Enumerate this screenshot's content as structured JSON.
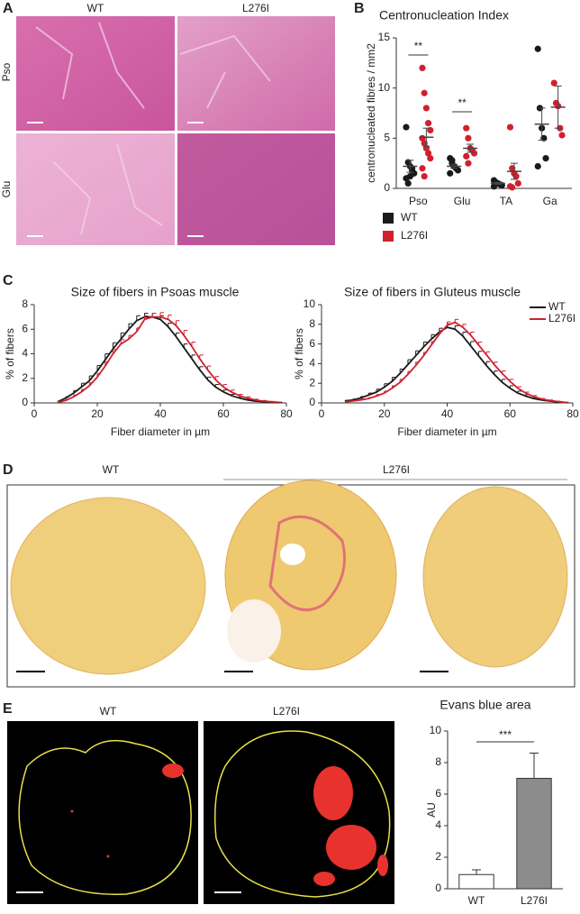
{
  "panel_labels": [
    "A",
    "B",
    "C",
    "D",
    "E"
  ],
  "panel_a": {
    "columns": [
      "WT",
      "L276I"
    ],
    "rows": [
      "Pso",
      "Glu"
    ]
  },
  "panel_d": {
    "columns": [
      "WT",
      "L276I"
    ]
  },
  "panel_e": {
    "columns": [
      "WT",
      "L276I"
    ]
  },
  "chart_data": [
    {
      "type": "strip",
      "title": "Centronucleation Index",
      "y_label": "centronucleated fibres / mm2",
      "categories": [
        "Pso",
        "Glu",
        "TA",
        "Ga"
      ],
      "ylim": [
        0,
        15
      ],
      "yticks": [
        0,
        5,
        10,
        15
      ],
      "annotations": [
        "**",
        "**"
      ],
      "legend": "bottom-left",
      "series": [
        {
          "name": "WT",
          "color": "#1a1a1a",
          "values": [
            [
              6.1,
              2.6,
              2.2,
              1.8,
              1.5,
              1.0,
              0.5,
              1.2,
              2.0
            ],
            [
              3.0,
              2.5,
              2.2,
              2.0,
              1.8,
              1.5,
              2.8
            ],
            [
              0.8,
              0.6,
              0.5,
              0.4,
              0.3,
              0.2
            ],
            [
              13.9,
              8.0,
              6.0,
              5.0,
              3.0,
              2.2
            ]
          ],
          "means": [
            2.2,
            2.2,
            0.5,
            6.4
          ],
          "errors": [
            0.6,
            0.2,
            0.1,
            1.6
          ]
        },
        {
          "name": "L276I",
          "color": "#d0202e",
          "values": [
            [
              12.0,
              9.5,
              8.0,
              6.5,
              5.8,
              5.0,
              4.5,
              4.0,
              3.5,
              3.0,
              2.0,
              1.2
            ],
            [
              6.0,
              5.0,
              4.0,
              3.8,
              3.5,
              3.2,
              2.5
            ],
            [
              6.1,
              2.0,
              1.5,
              1.2,
              0.5,
              0.2,
              0.1
            ],
            [
              10.5,
              8.5,
              8.2,
              6.0,
              5.3
            ]
          ],
          "means": [
            5.1,
            4.0,
            1.7,
            8.1
          ],
          "errors": [
            0.9,
            0.4,
            0.8,
            2.1
          ]
        }
      ]
    },
    {
      "type": "line",
      "title": "Size of fibers in Psoas muscle",
      "x_label": "Fiber diameter in µm",
      "y_label": "% of fibers",
      "xlim": [
        0,
        80
      ],
      "xticks": [
        0,
        20,
        40,
        60,
        80
      ],
      "ylim": [
        0,
        8
      ],
      "yticks": [
        0,
        2,
        4,
        6,
        8
      ],
      "legend": false,
      "x": [
        7.5,
        10,
        12.5,
        15,
        17.5,
        20,
        22.5,
        25,
        27.5,
        30,
        32.5,
        35,
        37.5,
        40,
        42.5,
        45,
        47.5,
        50,
        52.5,
        55,
        57.5,
        60,
        62.5,
        65,
        67.5,
        70,
        72.5,
        75,
        77.5
      ],
      "series": [
        {
          "name": "WT",
          "color": "#1a1a1a",
          "values": [
            0.1,
            0.4,
            0.8,
            1.3,
            1.8,
            2.6,
            3.5,
            4.4,
            5.2,
            6.0,
            6.7,
            7.0,
            7.0,
            6.8,
            6.2,
            5.4,
            4.5,
            3.6,
            2.7,
            1.9,
            1.3,
            0.9,
            0.6,
            0.4,
            0.25,
            0.15,
            0.1,
            0.05,
            0.02
          ],
          "errors": [
            0.05,
            0.1,
            0.2,
            0.3,
            0.4,
            0.45,
            0.5,
            0.5,
            0.5,
            0.45,
            0.4,
            0.3,
            0.3,
            0.3,
            0.3,
            0.3,
            0.3,
            0.3,
            0.25,
            0.2,
            0.2,
            0.15,
            0.1,
            0.1,
            0.05,
            0.05,
            0.05,
            0.02,
            0.02
          ]
        },
        {
          "name": "L276I",
          "color": "#d0202e",
          "values": [
            0.05,
            0.2,
            0.5,
            0.9,
            1.4,
            2.1,
            3.0,
            4.0,
            4.8,
            5.2,
            5.8,
            6.8,
            7.0,
            7.0,
            6.8,
            6.3,
            5.5,
            4.6,
            3.6,
            2.7,
            1.9,
            1.3,
            0.9,
            0.6,
            0.4,
            0.25,
            0.15,
            0.1,
            0.05
          ],
          "errors": [
            0.05,
            0.1,
            0.15,
            0.2,
            0.25,
            0.3,
            0.35,
            0.35,
            0.35,
            0.3,
            0.3,
            0.3,
            0.3,
            0.35,
            0.35,
            0.4,
            0.4,
            0.35,
            0.3,
            0.3,
            0.25,
            0.2,
            0.15,
            0.1,
            0.1,
            0.05,
            0.05,
            0.02,
            0.02
          ]
        }
      ]
    },
    {
      "type": "line",
      "title": "Size of fibers in Gluteus muscle",
      "x_label": "Fiber diameter in µm",
      "y_label": "% of fibers",
      "xlim": [
        0,
        80
      ],
      "xticks": [
        0,
        20,
        40,
        60,
        80
      ],
      "ylim": [
        0,
        10
      ],
      "yticks": [
        0,
        2,
        4,
        6,
        8,
        10
      ],
      "legend": "top-right",
      "x": [
        7.5,
        10,
        12.5,
        15,
        17.5,
        20,
        22.5,
        25,
        27.5,
        30,
        32.5,
        35,
        37.5,
        40,
        42.5,
        45,
        47.5,
        50,
        52.5,
        55,
        57.5,
        60,
        62.5,
        65,
        67.5,
        70,
        72.5,
        75,
        77.5
      ],
      "series": [
        {
          "name": "WT",
          "color": "#1a1a1a",
          "values": [
            0.2,
            0.3,
            0.5,
            0.8,
            1.1,
            1.6,
            2.2,
            3.0,
            3.9,
            4.8,
            5.7,
            6.5,
            7.2,
            7.7,
            7.5,
            6.8,
            5.8,
            4.8,
            3.8,
            2.9,
            2.1,
            1.5,
            1.0,
            0.7,
            0.45,
            0.3,
            0.2,
            0.1,
            0.05
          ],
          "errors": [
            0.05,
            0.1,
            0.15,
            0.2,
            0.3,
            0.35,
            0.4,
            0.45,
            0.5,
            0.5,
            0.5,
            0.45,
            0.4,
            0.35,
            0.35,
            0.4,
            0.45,
            0.45,
            0.4,
            0.35,
            0.3,
            0.25,
            0.2,
            0.15,
            0.1,
            0.05,
            0.05,
            0.02,
            0.02
          ]
        },
        {
          "name": "L276I",
          "color": "#d0202e",
          "values": [
            0.1,
            0.2,
            0.3,
            0.45,
            0.7,
            1.0,
            1.5,
            2.1,
            2.9,
            3.8,
            4.8,
            5.9,
            7.0,
            7.9,
            8.2,
            7.7,
            6.9,
            5.9,
            4.9,
            3.9,
            3.0,
            2.2,
            1.5,
            1.0,
            0.65,
            0.4,
            0.25,
            0.15,
            0.05
          ],
          "errors": [
            0.05,
            0.05,
            0.1,
            0.1,
            0.15,
            0.2,
            0.25,
            0.3,
            0.3,
            0.35,
            0.35,
            0.35,
            0.35,
            0.35,
            0.3,
            0.3,
            0.3,
            0.3,
            0.3,
            0.25,
            0.25,
            0.2,
            0.15,
            0.1,
            0.1,
            0.05,
            0.05,
            0.02,
            0.02
          ]
        }
      ]
    },
    {
      "type": "bar",
      "title": "Evans blue area",
      "y_label": "AU",
      "categories": [
        "WT",
        "L276I"
      ],
      "values": [
        0.9,
        7.0
      ],
      "errors": [
        0.3,
        1.6
      ],
      "colors": [
        "#ffffff",
        "#8c8c8c"
      ],
      "ylim": [
        0,
        10
      ],
      "yticks": [
        0,
        2,
        4,
        6,
        8,
        10
      ],
      "annotations": [
        "***"
      ]
    }
  ]
}
